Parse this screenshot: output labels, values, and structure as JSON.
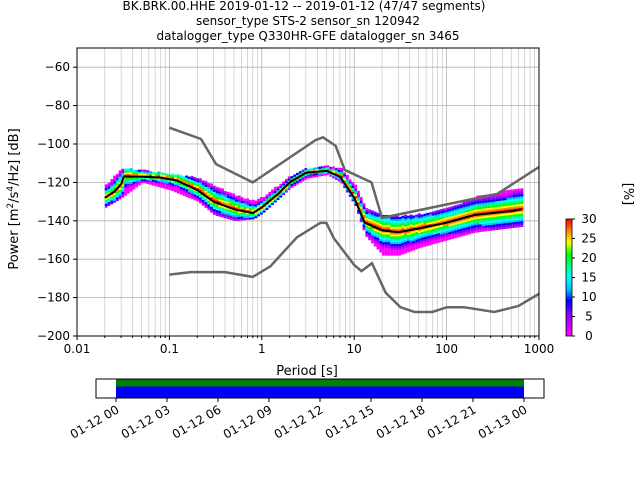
{
  "title": {
    "line1": "BK.BRK.00.HHE   2019-01-12 -- 2019-01-12  (47/47 segments)",
    "line2": "sensor_type STS-2 sensor_sn 120942",
    "line3": "datalogger_type Q330HR-GFE datalogger_sn 3465"
  },
  "colors": {
    "nlnm_nhnm": "#666666",
    "mean_curve": "#000000",
    "timeline_green": "#008000",
    "timeline_blue": "#0000ff",
    "grid": "#b0b0b0"
  },
  "chart_data": {
    "type": "heatmap",
    "title": "BK.BRK.00.HHE   2019-01-12 -- 2019-01-12  (47/47 segments)",
    "xlabel": "Period [s]",
    "ylabel": "Power [m²/s⁴/Hz] [dB]",
    "xscale": "log",
    "xlim": [
      0.01,
      1000
    ],
    "ylim": [
      -200,
      -50
    ],
    "xticks": [
      0.01,
      0.1,
      1,
      10,
      100,
      1000
    ],
    "xticklabels": [
      "0.01",
      "0.1",
      "1",
      "10",
      "100",
      "1000"
    ],
    "yticks": [
      -200,
      -180,
      -160,
      -140,
      -120,
      -100,
      -80,
      -60
    ],
    "yticklabels": [
      "−200",
      "−180",
      "−160",
      "−140",
      "−120",
      "−100",
      "−80",
      "−60"
    ],
    "grid": true,
    "colorbar": {
      "label": "[%]",
      "range": [
        0,
        30
      ],
      "ticks": [
        0,
        5,
        10,
        15,
        20,
        25,
        30
      ],
      "ticklabels": [
        "0",
        "5",
        "10",
        "15",
        "20",
        "25",
        "30"
      ]
    },
    "nhnm": [
      [
        0.1,
        -91.5
      ],
      [
        0.22,
        -97.4
      ],
      [
        0.32,
        -110.5
      ],
      [
        0.8,
        -120
      ],
      [
        3.8,
        -98
      ],
      [
        4.6,
        -96.5
      ],
      [
        6.3,
        -101
      ],
      [
        7.9,
        -113.5
      ],
      [
        15.4,
        -120
      ],
      [
        20,
        -138.5
      ],
      [
        354.8,
        -126
      ],
      [
        1000,
        -112
      ]
    ],
    "nlnm": [
      [
        0.1,
        -168
      ],
      [
        0.17,
        -166.7
      ],
      [
        0.4,
        -166.7
      ],
      [
        0.8,
        -169.2
      ],
      [
        1.24,
        -163.7
      ],
      [
        2.4,
        -148.6
      ],
      [
        4.3,
        -141.1
      ],
      [
        5,
        -141.1
      ],
      [
        6,
        -149
      ],
      [
        10,
        -163
      ],
      [
        12,
        -166.2
      ],
      [
        15.6,
        -162.1
      ],
      [
        21.9,
        -177.5
      ],
      [
        31.6,
        -185
      ],
      [
        45,
        -187.5
      ],
      [
        70,
        -187.5
      ],
      [
        101,
        -185
      ],
      [
        154,
        -185
      ],
      [
        328,
        -187.5
      ],
      [
        600,
        -184.4
      ],
      [
        1000,
        -178
      ]
    ],
    "mean_psd": [
      [
        0.02,
        -128
      ],
      [
        0.025,
        -125
      ],
      [
        0.03,
        -121
      ],
      [
        0.032,
        -117
      ],
      [
        0.05,
        -117
      ],
      [
        0.08,
        -117.5
      ],
      [
        0.12,
        -119
      ],
      [
        0.2,
        -124
      ],
      [
        0.3,
        -130
      ],
      [
        0.5,
        -134
      ],
      [
        0.8,
        -136
      ],
      [
        1,
        -133
      ],
      [
        1.5,
        -126
      ],
      [
        2,
        -120
      ],
      [
        3,
        -115
      ],
      [
        5,
        -114
      ],
      [
        7,
        -117
      ],
      [
        10,
        -128
      ],
      [
        13,
        -141
      ],
      [
        20,
        -145
      ],
      [
        30,
        -146
      ],
      [
        50,
        -144
      ],
      [
        100,
        -141
      ],
      [
        200,
        -137
      ],
      [
        500,
        -135
      ],
      [
        650,
        -134
      ]
    ],
    "psd_band": [
      [
        0.02,
        -133,
        -122
      ],
      [
        0.03,
        -128,
        -113
      ],
      [
        0.05,
        -120,
        -114
      ],
      [
        0.1,
        -124,
        -116
      ],
      [
        0.2,
        -130,
        -118
      ],
      [
        0.3,
        -137,
        -122
      ],
      [
        0.5,
        -140,
        -127
      ],
      [
        0.8,
        -139,
        -130
      ],
      [
        1,
        -136,
        -128
      ],
      [
        2,
        -123,
        -117
      ],
      [
        3,
        -118,
        -113
      ],
      [
        5,
        -116,
        -112
      ],
      [
        7,
        -120,
        -113
      ],
      [
        10,
        -132,
        -122
      ],
      [
        13,
        -148,
        -134
      ],
      [
        20,
        -158,
        -138
      ],
      [
        30,
        -158,
        -138
      ],
      [
        50,
        -154,
        -137
      ],
      [
        100,
        -150,
        -134
      ],
      [
        200,
        -146,
        -128
      ],
      [
        650,
        -143,
        -123
      ]
    ],
    "timeline": {
      "xticklabels": [
        "01-12 00",
        "01-12 03",
        "01-12 06",
        "01-12 09",
        "01-12 12",
        "01-12 15",
        "01-12 18",
        "01-12 21",
        "01-13 00"
      ]
    }
  }
}
